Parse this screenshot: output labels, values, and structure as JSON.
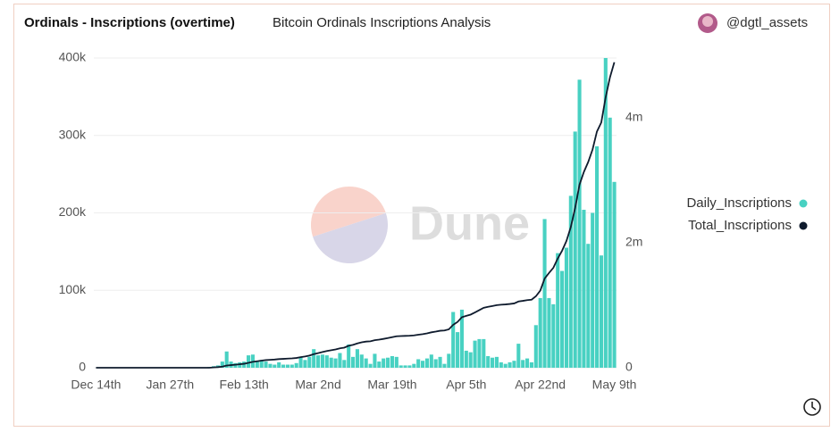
{
  "title": "Ordinals - Inscriptions (overtime)",
  "subtitle": "Bitcoin Ordinals Inscriptions Analysis",
  "author": "@dgtl_assets",
  "watermark": "Dune",
  "chart_data": {
    "type": "bar-line",
    "categories": [
      "Dec 14th",
      null,
      null,
      null,
      null,
      null,
      null,
      null,
      null,
      null,
      null,
      null,
      null,
      null,
      null,
      null,
      null,
      "Jan 27th",
      null,
      null,
      null,
      null,
      null,
      null,
      null,
      null,
      null,
      null,
      null,
      null,
      null,
      null,
      null,
      null,
      "Feb 13th",
      null,
      null,
      null,
      null,
      null,
      null,
      null,
      null,
      null,
      null,
      null,
      null,
      null,
      null,
      null,
      null,
      "Mar 2nd",
      null,
      null,
      null,
      null,
      null,
      null,
      null,
      null,
      null,
      null,
      null,
      null,
      null,
      null,
      null,
      null,
      "Mar 19th",
      null,
      null,
      null,
      null,
      null,
      null,
      null,
      null,
      null,
      null,
      null,
      null,
      null,
      null,
      null,
      null,
      "Apr 5th",
      null,
      null,
      null,
      null,
      null,
      null,
      null,
      null,
      null,
      null,
      null,
      null,
      null,
      null,
      null,
      null,
      "Apr 22nd",
      null,
      null,
      null,
      null,
      null,
      null,
      null,
      null,
      null,
      null,
      null,
      null,
      null,
      null,
      null,
      null,
      "May 9th"
    ],
    "series": [
      {
        "name": "Daily_Inscriptions",
        "color": "#48d1c2",
        "type": "bar",
        "axis": "y",
        "values": [
          0,
          0,
          0,
          0,
          0,
          0,
          0,
          0,
          0,
          0,
          0,
          0,
          0,
          0,
          0,
          0,
          0,
          0,
          0,
          0,
          0,
          0,
          0,
          0,
          0,
          0,
          1000,
          2000,
          3000,
          8000,
          21000,
          8000,
          6000,
          7000,
          8000,
          16000,
          17000,
          9000,
          10000,
          8000,
          5000,
          4000,
          7000,
          4000,
          4000,
          4000,
          6000,
          14000,
          10000,
          14000,
          24000,
          16000,
          17000,
          16000,
          13000,
          12000,
          19000,
          10000,
          30000,
          14000,
          24000,
          17000,
          12000,
          5000,
          18000,
          8000,
          12000,
          13000,
          15000,
          14000,
          3000,
          3000,
          3000,
          5000,
          11000,
          9000,
          12000,
          17000,
          11000,
          14000,
          5000,
          18000,
          72000,
          46000,
          75000,
          22000,
          20000,
          35000,
          37000,
          37000,
          15000,
          13000,
          14000,
          7000,
          5000,
          7000,
          9000,
          31000,
          10000,
          12000,
          7000,
          55000,
          90000,
          192000,
          90000,
          82000,
          148000,
          125000,
          155000,
          222000,
          305000,
          372000,
          204000,
          160000,
          200000,
          286000,
          145000,
          400000,
          323000,
          240000
        ]
      },
      {
        "name": "Total_Inscriptions",
        "color": "#0f1b2d",
        "type": "line",
        "axis": "y2",
        "values": [
          0,
          0,
          0,
          0,
          0,
          0,
          0,
          0,
          0,
          0,
          0,
          0,
          0,
          0,
          0,
          0,
          0,
          0,
          0,
          0,
          0,
          0,
          0,
          0,
          0,
          0,
          0,
          5000,
          10000,
          18000,
          35000,
          42000,
          48000,
          55000,
          63000,
          78000,
          95000,
          104000,
          114000,
          122000,
          127000,
          131000,
          138000,
          142000,
          146000,
          150000,
          156000,
          170000,
          180000,
          194000,
          218000,
          234000,
          251000,
          267000,
          280000,
          292000,
          311000,
          321000,
          351000,
          365000,
          389000,
          406000,
          418000,
          423000,
          441000,
          449000,
          461000,
          474000,
          489000,
          503000,
          506000,
          509000,
          512000,
          517000,
          528000,
          537000,
          549000,
          566000,
          577000,
          591000,
          596000,
          614000,
          686000,
          732000,
          807000,
          829000,
          849000,
          884000,
          921000,
          958000,
          973000,
          986000,
          1000000,
          1007000,
          1012000,
          1019000,
          1028000,
          1059000,
          1069000,
          1081000,
          1088000,
          1143000,
          1233000,
          1425000,
          1515000,
          1597000,
          1745000,
          1870000,
          2025000,
          2247000,
          2552000,
          2924000,
          3128000,
          3288000,
          3488000,
          3774000,
          3919000,
          4319000,
          4642000,
          4882000
        ]
      }
    ],
    "ylim": [
      0,
      400000
    ],
    "yticks": [
      0,
      {
        "value": 100000,
        "label": "100k"
      },
      {
        "value": 200000,
        "label": "200k"
      },
      {
        "value": 300000,
        "label": "300k"
      },
      {
        "value": 400000,
        "label": "400k"
      }
    ],
    "y2lim": [
      0,
      4950000
    ],
    "y2ticks": [
      0,
      {
        "value": 2000000,
        "label": "2m"
      },
      {
        "value": 4000000,
        "label": "4m"
      }
    ],
    "grid": true,
    "legend": "right"
  }
}
